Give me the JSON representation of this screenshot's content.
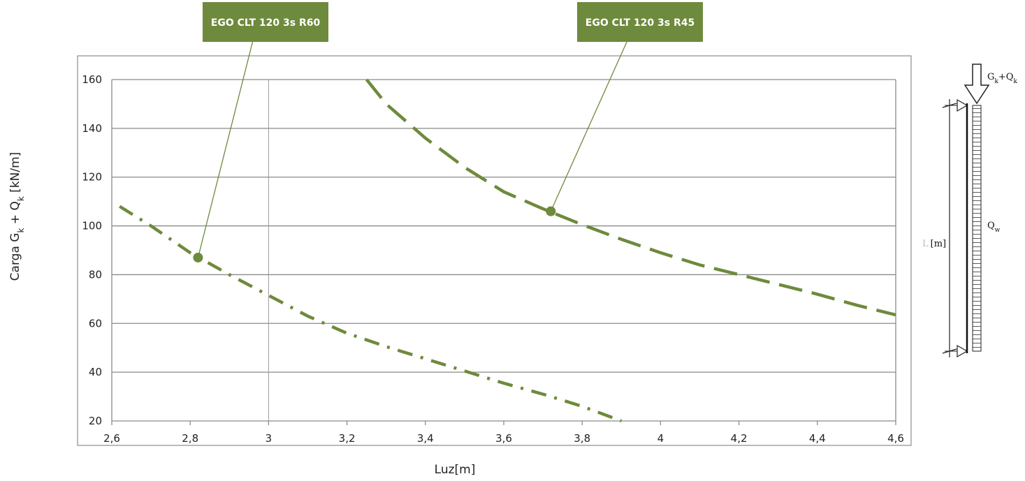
{
  "chart_data": {
    "type": "line",
    "title": "",
    "xlabel": "Luz[m]",
    "ylabel": {
      "main": "Carga G",
      "sub1": "k",
      "mid": " + Q",
      "sub2": "k",
      "tail": " [kN/m]"
    },
    "xlim": [
      2.6,
      4.6
    ],
    "ylim": [
      20,
      160
    ],
    "x_ticks": [
      2.6,
      2.8,
      3.0,
      3.2,
      3.4,
      3.6,
      3.8,
      4.0,
      4.2,
      4.4,
      4.6
    ],
    "x_tick_labels": [
      "2,6",
      "2,8",
      "3",
      "3,2",
      "3,4",
      "3,6",
      "3,8",
      "4",
      "4,2",
      "4,4",
      "4,6"
    ],
    "y_ticks": [
      20,
      40,
      60,
      80,
      100,
      120,
      140,
      160
    ],
    "y_tick_labels": [
      "20",
      "40",
      "60",
      "80",
      "100",
      "120",
      "140",
      "160"
    ],
    "grid": {
      "horizontal": true,
      "vertical_at": [
        3.0
      ]
    },
    "line_color": "#6e8a3c",
    "series": [
      {
        "name": "EGO CLT 120 3s R60",
        "style": "dash-dot",
        "points": [
          [
            2.62,
            108
          ],
          [
            2.7,
            100
          ],
          [
            2.8,
            89
          ],
          [
            2.9,
            80
          ],
          [
            3.0,
            71.5
          ],
          [
            3.1,
            63
          ],
          [
            3.2,
            56
          ],
          [
            3.3,
            50.5
          ],
          [
            3.4,
            45.5
          ],
          [
            3.5,
            40.5
          ],
          [
            3.6,
            35.5
          ],
          [
            3.7,
            31
          ],
          [
            3.8,
            26
          ],
          [
            3.9,
            20
          ]
        ],
        "marker": [
          2.82,
          87
        ]
      },
      {
        "name": "EGO CLT 120 3s R45",
        "style": "dash",
        "points": [
          [
            3.25,
            160
          ],
          [
            3.3,
            150
          ],
          [
            3.4,
            136
          ],
          [
            3.5,
            124
          ],
          [
            3.6,
            114
          ],
          [
            3.7,
            107
          ],
          [
            3.8,
            100.5
          ],
          [
            3.9,
            94.5
          ],
          [
            4.0,
            89
          ],
          [
            4.1,
            84
          ],
          [
            4.2,
            80
          ],
          [
            4.3,
            76
          ],
          [
            4.4,
            72
          ],
          [
            4.5,
            67.5
          ],
          [
            4.6,
            63.5
          ]
        ],
        "marker": [
          3.72,
          106
        ]
      }
    ],
    "callouts": [
      {
        "label": "EGO CLT 120 3s R60",
        "series": 0
      },
      {
        "label": "EGO CLT 120 3s R45",
        "series": 1
      }
    ]
  },
  "diagram": {
    "load_label": {
      "g": "G",
      "gsub": "k",
      "plus": "+Q",
      "qsub": "k"
    },
    "wind_label": {
      "q": "Q",
      "qsub": "w"
    },
    "length_label": "[m]",
    "length_prefix": "L"
  }
}
